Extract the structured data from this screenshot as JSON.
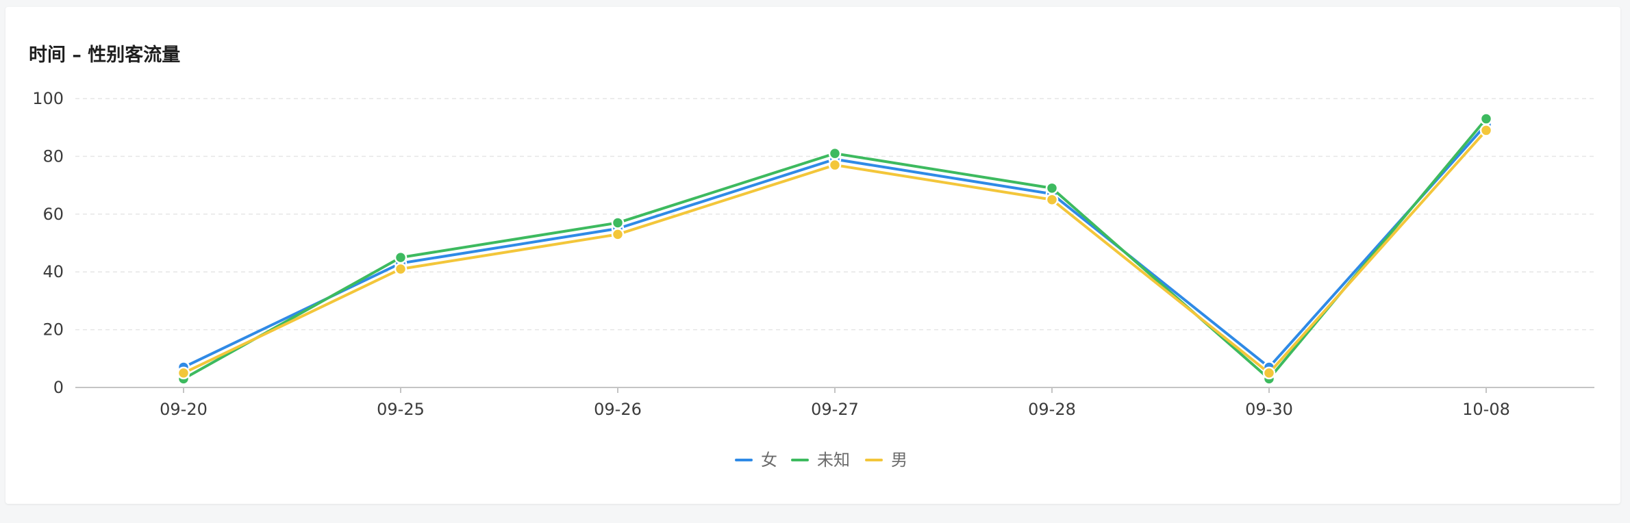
{
  "card": {
    "title": "时间 – 性别客流量"
  },
  "chart_data": {
    "type": "line",
    "title": "时间 – 性别客流量",
    "categories": [
      "09-20",
      "09-25",
      "09-26",
      "09-27",
      "09-28",
      "09-30",
      "10-08"
    ],
    "ylim": [
      0,
      100
    ],
    "yticks": [
      0,
      20,
      40,
      60,
      80,
      100
    ],
    "grid": true,
    "legend_position": "bottom",
    "series": [
      {
        "name": "女",
        "color": "#2f8ae6",
        "values": [
          7,
          43,
          55,
          79,
          67,
          7,
          91
        ]
      },
      {
        "name": "未知",
        "color": "#3dba5f",
        "values": [
          3,
          45,
          57,
          81,
          69,
          3,
          93
        ]
      },
      {
        "name": "男",
        "color": "#f3c63a",
        "values": [
          5,
          41,
          53,
          77,
          65,
          5,
          89
        ]
      }
    ]
  }
}
